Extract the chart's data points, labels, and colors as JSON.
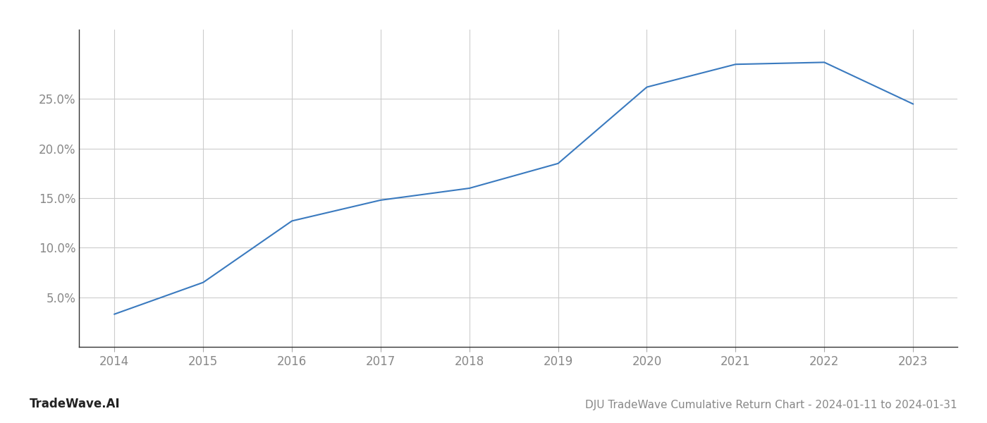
{
  "x_years": [
    2014,
    2015,
    2016,
    2017,
    2018,
    2019,
    2020,
    2021,
    2022,
    2023
  ],
  "y_values": [
    3.3,
    6.5,
    12.7,
    14.8,
    16.0,
    18.5,
    26.2,
    28.5,
    28.7,
    24.5
  ],
  "line_color": "#3a7abf",
  "line_width": 1.5,
  "title": "DJU TradeWave Cumulative Return Chart - 2024-01-11 to 2024-01-31",
  "watermark": "TradeWave.AI",
  "xlabel": "",
  "ylabel": "",
  "ylim_min": 0,
  "ylim_max": 32,
  "yticks": [
    5.0,
    10.0,
    15.0,
    20.0,
    25.0
  ],
  "xticks": [
    2014,
    2015,
    2016,
    2017,
    2018,
    2019,
    2020,
    2021,
    2022,
    2023
  ],
  "background_color": "#ffffff",
  "grid_color": "#cccccc",
  "tick_label_color": "#888888",
  "title_color": "#888888",
  "watermark_color": "#222222",
  "title_fontsize": 11,
  "tick_fontsize": 12,
  "watermark_fontsize": 12,
  "xlim_min": 2013.6,
  "xlim_max": 2023.5
}
